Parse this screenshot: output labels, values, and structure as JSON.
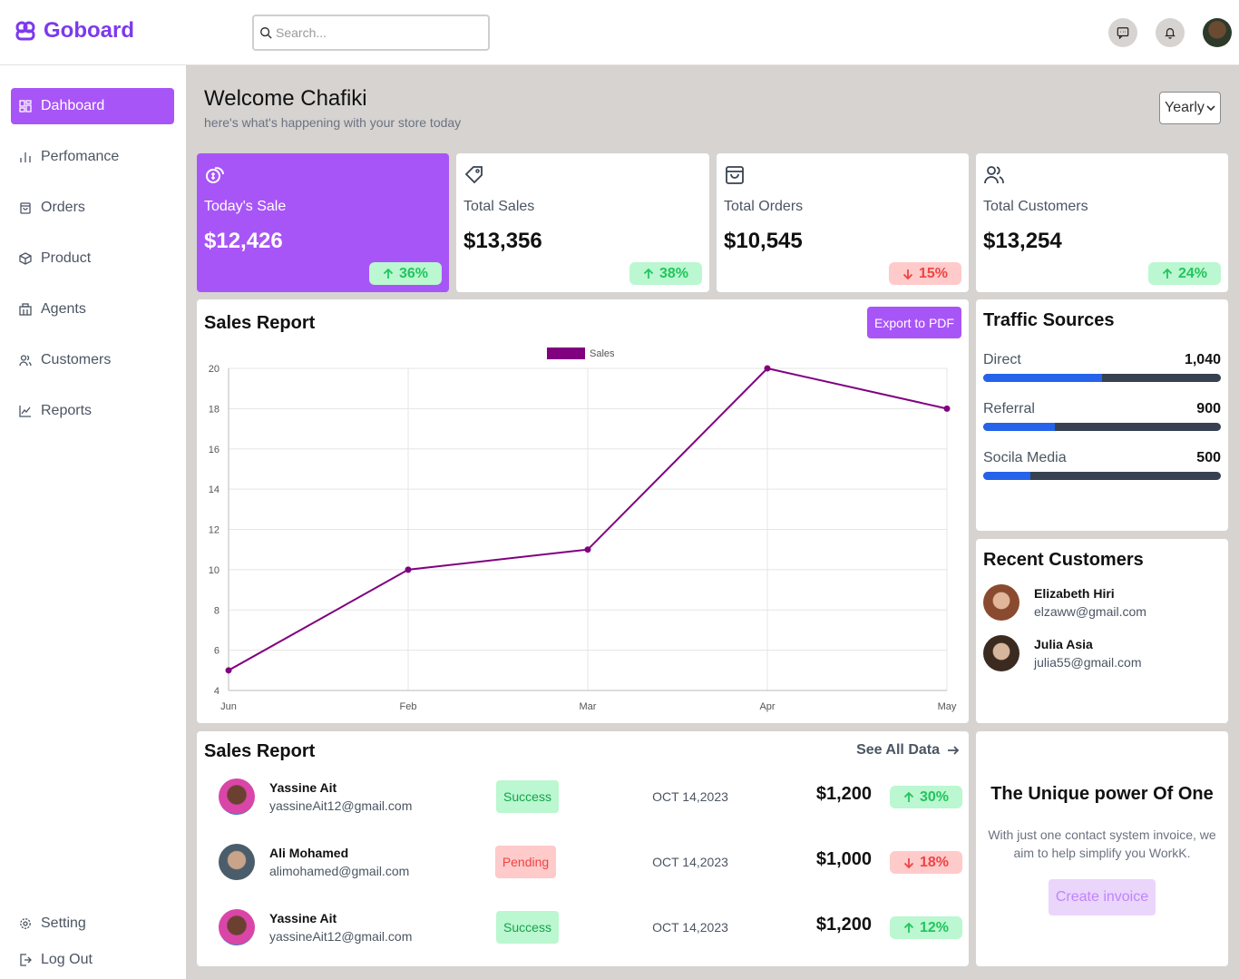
{
  "app": {
    "name": "Goboard"
  },
  "search": {
    "placeholder": "Search..."
  },
  "header": {
    "user_avatar": "user-avatar",
    "icons": [
      "chat-icon",
      "bell-icon"
    ]
  },
  "sidebar": {
    "items": [
      {
        "label": "Dahboard",
        "icon": "dashboard-icon",
        "active": true
      },
      {
        "label": "Perfomance",
        "icon": "bar-chart-icon"
      },
      {
        "label": "Orders",
        "icon": "bag-icon"
      },
      {
        "label": "Product",
        "icon": "box-icon"
      },
      {
        "label": "Agents",
        "icon": "building-icon"
      },
      {
        "label": "Customers",
        "icon": "users-icon"
      },
      {
        "label": "Reports",
        "icon": "line-chart-icon"
      }
    ],
    "bottom": [
      {
        "label": "Setting",
        "icon": "gear-icon"
      },
      {
        "label": "Log Out",
        "icon": "logout-icon"
      }
    ]
  },
  "welcome": {
    "title": "Welcome Chafiki",
    "subtitle": "here's what's happening with your store today"
  },
  "period_select": {
    "value": "Yearly"
  },
  "stats": [
    {
      "label": "Today's Sale",
      "value": "$12,426",
      "change": "36%",
      "trend": "up",
      "icon": "coins-icon"
    },
    {
      "label": "Total Sales",
      "value": "$13,356",
      "change": "38%",
      "trend": "up",
      "icon": "tag-icon"
    },
    {
      "label": "Total Orders",
      "value": "$10,545",
      "change": "15%",
      "trend": "down",
      "icon": "shopping-bag-icon"
    },
    {
      "label": "Total Customers",
      "value": "$13,254",
      "change": "24%",
      "trend": "up",
      "icon": "users-icon"
    }
  ],
  "sales_chart": {
    "title": "Sales Report",
    "export_label": "Export to PDF"
  },
  "chart_data": {
    "type": "line",
    "categories": [
      "Jun",
      "Feb",
      "Mar",
      "Apr",
      "May"
    ],
    "series": [
      {
        "name": "Sales",
        "values": [
          5,
          10,
          11,
          20,
          18
        ],
        "color": "#800080"
      }
    ],
    "ylim": [
      4,
      20
    ],
    "yticks": [
      "20",
      "18",
      "16",
      "14",
      "12",
      "10",
      "8",
      "6",
      "4"
    ],
    "legend": "top-center",
    "grid": true
  },
  "traffic": {
    "title": "Traffic Sources",
    "sources": [
      {
        "label": "Direct",
        "value": "1,040",
        "fill": 0.5
      },
      {
        "label": "Referral",
        "value": "900",
        "fill": 0.3
      },
      {
        "label": "Socila Media",
        "value": "500",
        "fill": 0.2
      }
    ]
  },
  "recent_customers": {
    "title": "Recent Customers",
    "items": [
      {
        "name": "Elizabeth Hiri",
        "email": "elzaww@gmail.com"
      },
      {
        "name": "Julia Asia",
        "email": "julia55@gmail.com"
      }
    ]
  },
  "sales_table": {
    "title": "Sales Report",
    "see_all": "See All Data",
    "rows": [
      {
        "name": "Yassine Ait",
        "email": "yassineAit12@gmail.com",
        "status": "Success",
        "date": "OCT 14,2023",
        "amount": "$1,200",
        "change": "30%",
        "trend": "up"
      },
      {
        "name": "Ali Mohamed",
        "email": "alimohamed@gmail.com",
        "status": "Pending",
        "date": "OCT 14,2023",
        "amount": "$1,000",
        "change": "18%",
        "trend": "down"
      },
      {
        "name": "Yassine Ait",
        "email": "yassineAit12@gmail.com",
        "status": "Success",
        "date": "OCT 14,2023",
        "amount": "$1,200",
        "change": "12%",
        "trend": "up"
      }
    ]
  },
  "promo": {
    "title": "The Unique power Of One",
    "text": "With just one contact system invoice, we aim to help simplify you WorkK.",
    "button": "Create invoice"
  },
  "colors": {
    "accent": "#a855f7",
    "brand": "#7c3aed",
    "bar": "#2563eb",
    "success_bg": "#bbf7d0",
    "danger_bg": "#fecaca"
  }
}
